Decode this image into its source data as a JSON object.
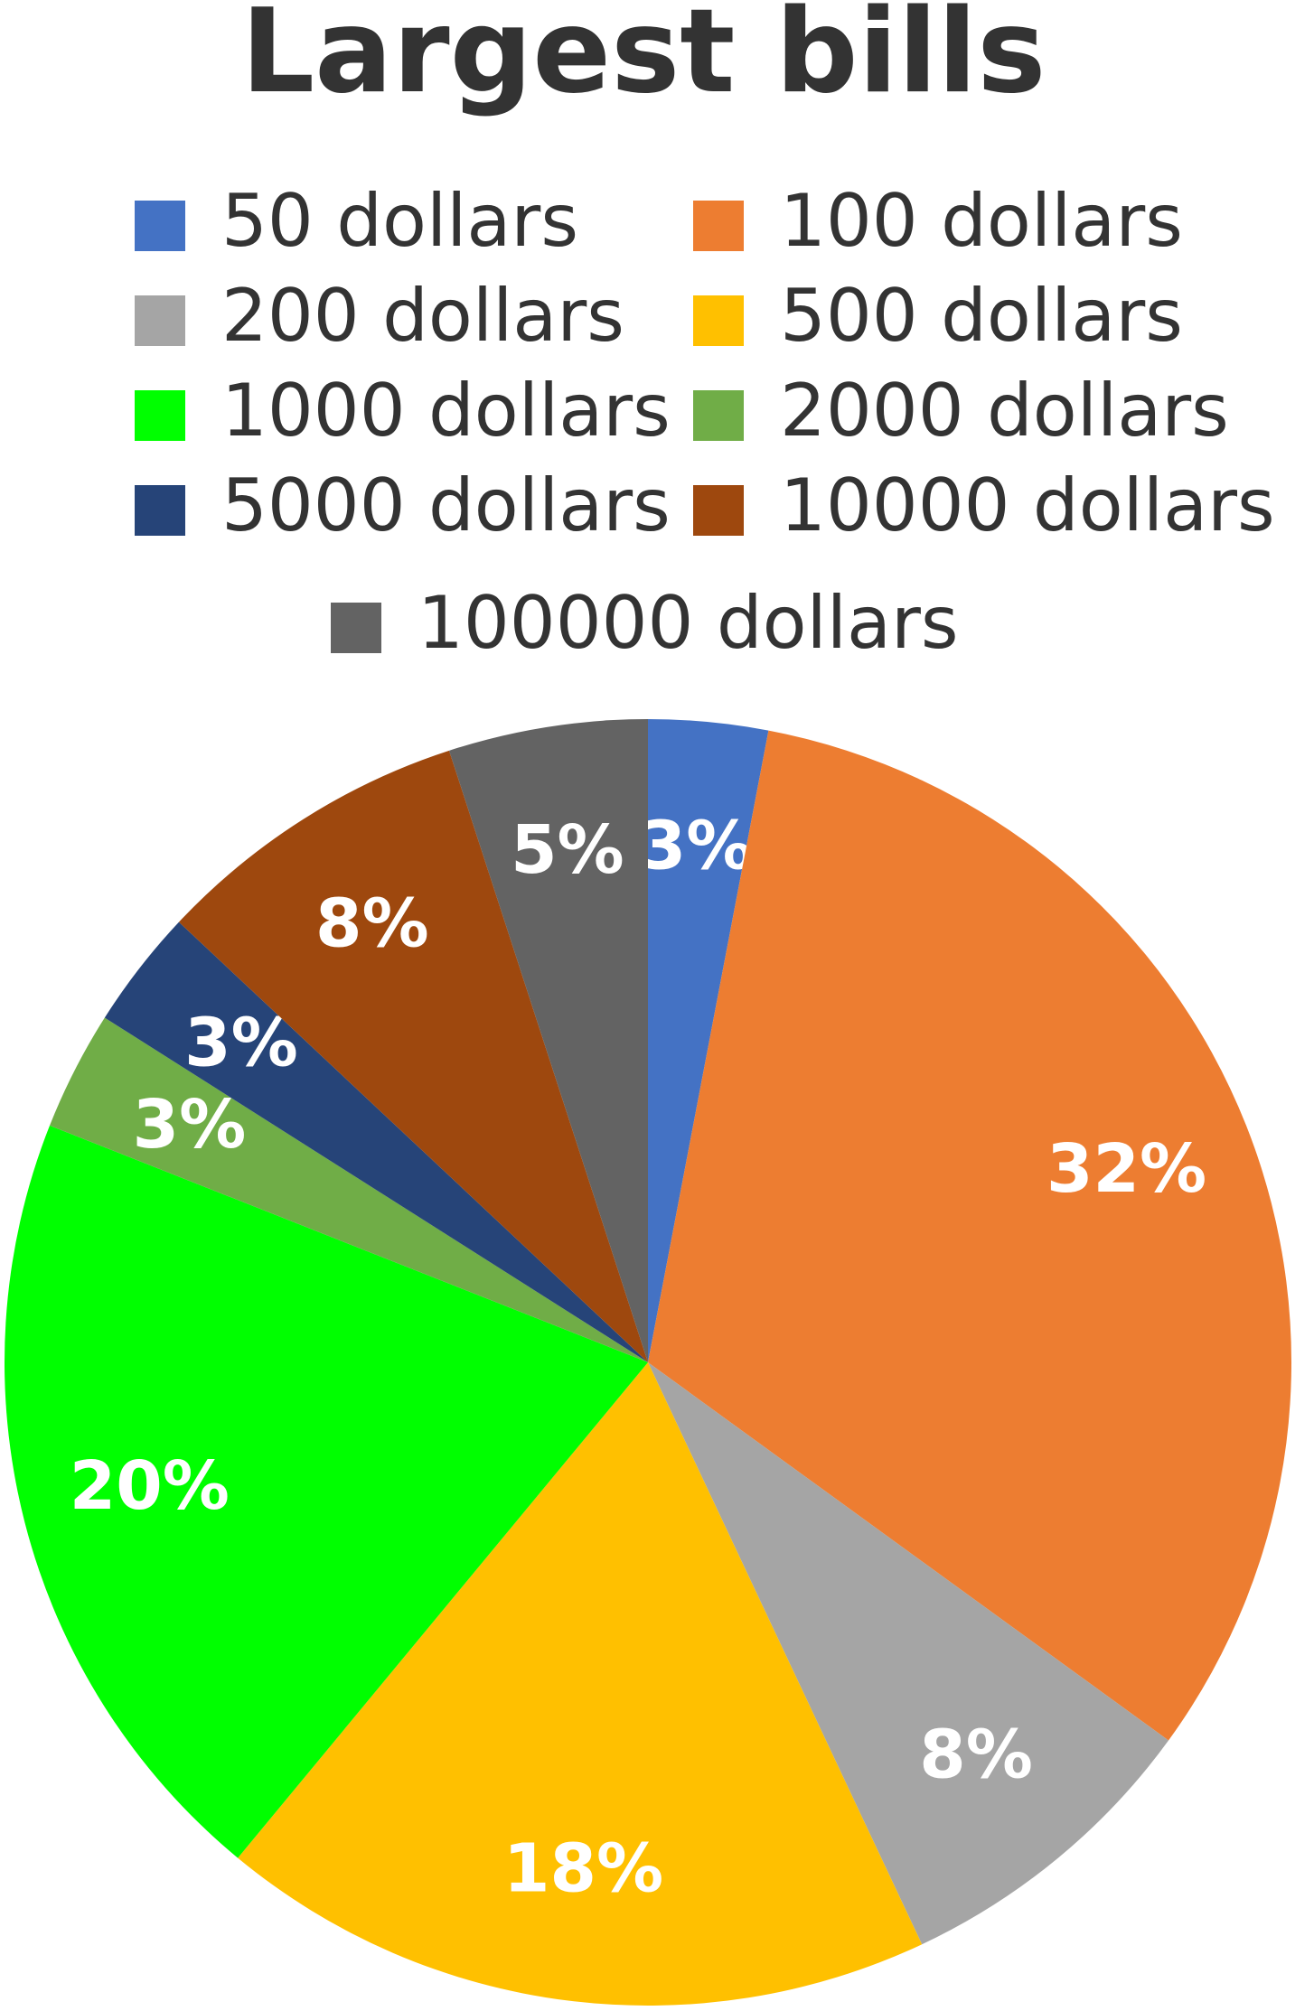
{
  "chart_data": {
    "type": "pie",
    "title": "Largest bills",
    "categories": [
      "50 dollars",
      "100 dollars",
      "200 dollars",
      "500 dollars",
      "1000 dollars",
      "2000 dollars",
      "5000 dollars",
      "10000 dollars",
      "100000 dollars"
    ],
    "values": [
      3,
      32,
      8,
      18,
      20,
      3,
      3,
      8,
      5
    ],
    "value_labels": [
      "3%",
      "32%",
      "8%",
      "18%",
      "20%",
      "3%",
      "3%",
      "8%",
      "5%"
    ],
    "colors": [
      "#4472c4",
      "#ed7d31",
      "#a5a5a5",
      "#ffc000",
      "#00ff00",
      "#70ad47",
      "#264478",
      "#9e480e",
      "#636363"
    ]
  }
}
